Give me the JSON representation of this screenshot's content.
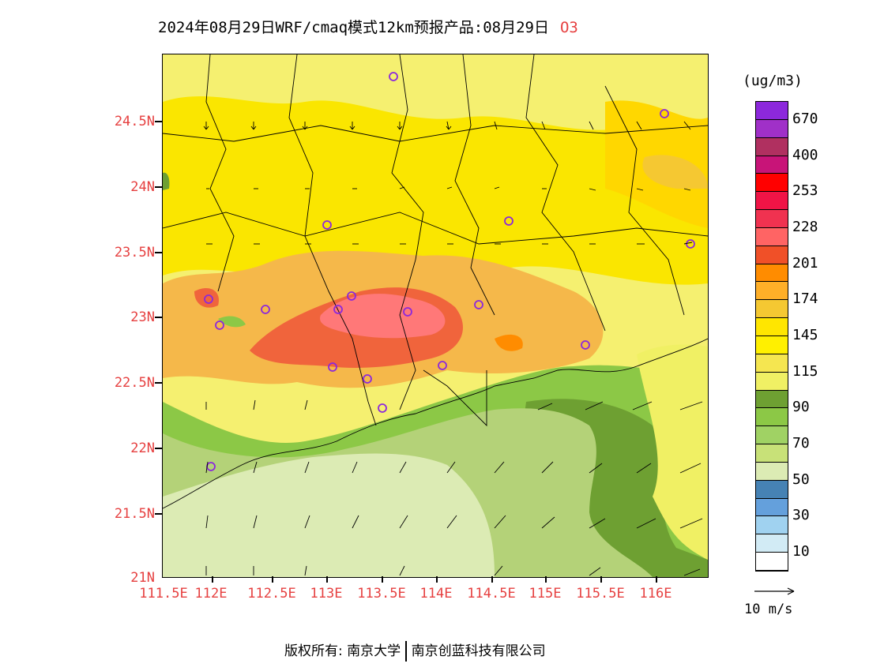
{
  "title": {
    "main": "2024年08月29日WRF/cmaq模式12km预报产品:08月29日",
    "species": "O3"
  },
  "lat_labels": [
    "24.5N",
    "24N",
    "23.5N",
    "23N",
    "22.5N",
    "22N",
    "21.5N",
    "21N"
  ],
  "lon_labels": [
    "111.5E",
    "112E",
    "112.5E",
    "113E",
    "113.5E",
    "114E",
    "114.5E",
    "115E",
    "115.5E",
    "116E"
  ],
  "colorbar": {
    "unit": "(ug/m3)",
    "labels": [
      "670",
      "400",
      "253",
      "228",
      "201",
      "174",
      "145",
      "115",
      "90",
      "70",
      "50",
      "30",
      "10"
    ],
    "colors": [
      "#8c28dc",
      "#a030c8",
      "#b03060",
      "#c81478",
      "#ff0000",
      "#f01446",
      "#f03250",
      "#ff6464",
      "#f05028",
      "#ff8c00",
      "#ffaf28",
      "#f5c832",
      "#ffe600",
      "#fff000",
      "#f5e650",
      "#f0f064",
      "#6ea032",
      "#8cc846",
      "#a0d264",
      "#c8e178",
      "#dcebb4",
      "#4682b4",
      "#64a0dc",
      "#a0d2f0",
      "#d2ebf5",
      "#ffffff"
    ]
  },
  "vector_reference": {
    "label": "10 m/s"
  },
  "footer": {
    "left": "版权所有: 南京大学",
    "right": "南京创蓝科技有限公司"
  }
}
